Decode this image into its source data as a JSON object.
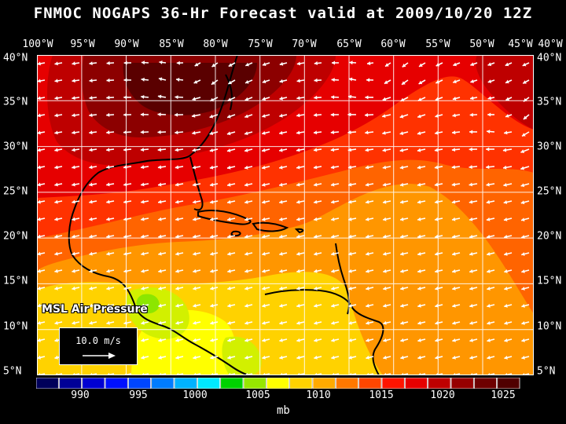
{
  "title": "FNMOC NOGAPS 36-Hr Forecast valid at 2009/10/20 12Z",
  "map_label": "MSL Air Pressure",
  "reference_vector": "10.0 m/s",
  "colorbar_units": "mb",
  "longitude_labels": [
    "100°W",
    "95°W",
    "90°W",
    "85°W",
    "80°W",
    "75°W",
    "70°W",
    "65°W",
    "60°W",
    "55°W",
    "50°W",
    "45°W",
    "40°W"
  ],
  "latitude_labels": [
    "40°N",
    "35°N",
    "30°N",
    "25°N",
    "20°N",
    "15°N",
    "10°N",
    "5°N"
  ],
  "colorbar_ticks": [
    "990",
    "995",
    "1000",
    "1005",
    "1010",
    "1015",
    "1020",
    "1025"
  ],
  "colorbar_colors": [
    "#00005a",
    "#000096",
    "#0000d2",
    "#0010ff",
    "#0046ff",
    "#007cff",
    "#00b2ff",
    "#00e8ff",
    "#00d200",
    "#96e600",
    "#ffff00",
    "#ffd200",
    "#ffaa00",
    "#ff7800",
    "#ff4600",
    "#ff1400",
    "#e60000",
    "#be0000",
    "#960000",
    "#6e0000",
    "#500000"
  ],
  "pressure_colors": {
    "p1005": "#8ce600",
    "p1007": "#d2f000",
    "p1009": "#ffff00",
    "p1011": "#ffd200",
    "p1013": "#ff9600",
    "p1015": "#ff6400",
    "p1017": "#ff3200",
    "p1019": "#e60000",
    "p1021": "#be0000",
    "p1023": "#8c0000",
    "p1025": "#5a0000"
  }
}
